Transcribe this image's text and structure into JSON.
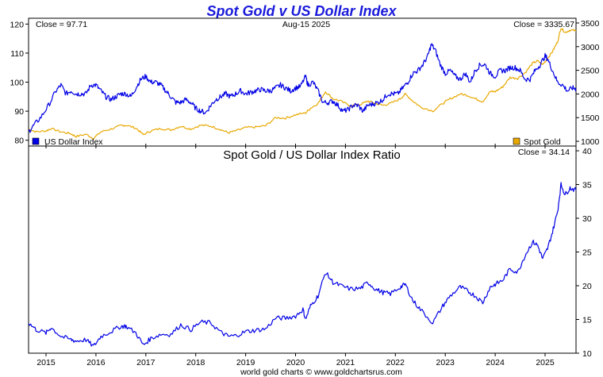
{
  "chart_data": [
    {
      "type": "line",
      "title": "Spot Gold v US Dollar Index",
      "date_label": "Aug-15  2025",
      "left_close_label": "Close = 97.71",
      "right_close_label": "Close = 3335.67",
      "x_years": [
        "2015",
        "2016",
        "2017",
        "2018",
        "2019",
        "2020",
        "2021",
        "2022",
        "2023",
        "2024",
        "2025"
      ],
      "x_range": [
        2014.65,
        2025.62
      ],
      "left_axis": {
        "ticks": [
          "80",
          "90",
          "100",
          "110",
          "120"
        ],
        "range": [
          78,
          122
        ]
      },
      "right_axis": {
        "ticks": [
          "1000",
          "1500",
          "2000",
          "2500",
          "3000",
          "3500"
        ],
        "range": [
          900,
          3600
        ]
      },
      "legend_left": "US Dollar Index",
      "legend_right": "Spot Gold",
      "series": [
        {
          "name": "US Dollar Index",
          "color": "#0000e6",
          "axis": "left",
          "points": [
            [
              2014.65,
              83
            ],
            [
              2014.75,
              85
            ],
            [
              2014.9,
              88
            ],
            [
              2015.05,
              92
            ],
            [
              2015.2,
              97
            ],
            [
              2015.3,
              99
            ],
            [
              2015.4,
              96
            ],
            [
              2015.5,
              97
            ],
            [
              2015.6,
              96
            ],
            [
              2015.7,
              96
            ],
            [
              2015.8,
              96
            ],
            [
              2015.9,
              99
            ],
            [
              2016.0,
              99
            ],
            [
              2016.1,
              97
            ],
            [
              2016.2,
              95
            ],
            [
              2016.3,
              94
            ],
            [
              2016.4,
              95
            ],
            [
              2016.5,
              96
            ],
            [
              2016.6,
              96
            ],
            [
              2016.7,
              95
            ],
            [
              2016.8,
              98
            ],
            [
              2016.9,
              101
            ],
            [
              2017.0,
              102
            ],
            [
              2017.1,
              100
            ],
            [
              2017.2,
              100
            ],
            [
              2017.3,
              99
            ],
            [
              2017.4,
              97
            ],
            [
              2017.5,
              95
            ],
            [
              2017.6,
              93
            ],
            [
              2017.7,
              93
            ],
            [
              2017.8,
              94
            ],
            [
              2017.9,
              93
            ],
            [
              2018.0,
              91
            ],
            [
              2018.1,
              90
            ],
            [
              2018.2,
              89.5
            ],
            [
              2018.3,
              92
            ],
            [
              2018.4,
              94
            ],
            [
              2018.5,
              95
            ],
            [
              2018.6,
              96
            ],
            [
              2018.7,
              95
            ],
            [
              2018.8,
              96
            ],
            [
              2018.9,
              97
            ],
            [
              2019.0,
              96
            ],
            [
              2019.1,
              96.5
            ],
            [
              2019.2,
              97
            ],
            [
              2019.3,
              97.5
            ],
            [
              2019.4,
              97
            ],
            [
              2019.5,
              97
            ],
            [
              2019.6,
              98
            ],
            [
              2019.7,
              99
            ],
            [
              2019.8,
              98
            ],
            [
              2019.9,
              97
            ],
            [
              2020.0,
              98
            ],
            [
              2020.1,
              98.5
            ],
            [
              2020.2,
              102
            ],
            [
              2020.25,
              99
            ],
            [
              2020.35,
              100
            ],
            [
              2020.45,
              97
            ],
            [
              2020.55,
              93
            ],
            [
              2020.65,
              93
            ],
            [
              2020.75,
              93.5
            ],
            [
              2020.85,
              92
            ],
            [
              2020.95,
              90
            ],
            [
              2021.05,
              90.5
            ],
            [
              2021.15,
              92
            ],
            [
              2021.25,
              92
            ],
            [
              2021.35,
              90
            ],
            [
              2021.45,
              92
            ],
            [
              2021.55,
              92.5
            ],
            [
              2021.65,
              93
            ],
            [
              2021.75,
              94
            ],
            [
              2021.85,
              96
            ],
            [
              2021.95,
              96
            ],
            [
              2022.05,
              96
            ],
            [
              2022.15,
              98
            ],
            [
              2022.25,
              100
            ],
            [
              2022.35,
              103
            ],
            [
              2022.45,
              104
            ],
            [
              2022.55,
              106
            ],
            [
              2022.65,
              109
            ],
            [
              2022.72,
              113
            ],
            [
              2022.8,
              111
            ],
            [
              2022.9,
              106
            ],
            [
              2023.0,
              103
            ],
            [
              2023.1,
              104
            ],
            [
              2023.2,
              102
            ],
            [
              2023.3,
              101
            ],
            [
              2023.4,
              103
            ],
            [
              2023.5,
              100
            ],
            [
              2023.6,
              104
            ],
            [
              2023.7,
              106
            ],
            [
              2023.8,
              106
            ],
            [
              2023.9,
              103
            ],
            [
              2024.0,
              102
            ],
            [
              2024.1,
              104
            ],
            [
              2024.2,
              104
            ],
            [
              2024.3,
              105
            ],
            [
              2024.4,
              105
            ],
            [
              2024.5,
              104
            ],
            [
              2024.6,
              101
            ],
            [
              2024.7,
              101
            ],
            [
              2024.8,
              104
            ],
            [
              2024.9,
              106
            ],
            [
              2025.0,
              109
            ],
            [
              2025.05,
              108
            ],
            [
              2025.15,
              104
            ],
            [
              2025.25,
              100
            ],
            [
              2025.35,
              99
            ],
            [
              2025.45,
              97
            ],
            [
              2025.55,
              98
            ],
            [
              2025.62,
              97.71
            ]
          ]
        },
        {
          "name": "Spot Gold",
          "color": "#e8a800",
          "axis": "right",
          "points": [
            [
              2014.65,
              1260
            ],
            [
              2014.8,
              1200
            ],
            [
              2015.0,
              1220
            ],
            [
              2015.1,
              1270
            ],
            [
              2015.3,
              1200
            ],
            [
              2015.5,
              1160
            ],
            [
              2015.6,
              1100
            ],
            [
              2015.8,
              1150
            ],
            [
              2015.95,
              1060
            ],
            [
              2016.1,
              1200
            ],
            [
              2016.3,
              1260
            ],
            [
              2016.5,
              1330
            ],
            [
              2016.6,
              1340
            ],
            [
              2016.8,
              1280
            ],
            [
              2016.95,
              1140
            ],
            [
              2017.1,
              1220
            ],
            [
              2017.3,
              1270
            ],
            [
              2017.5,
              1240
            ],
            [
              2017.7,
              1320
            ],
            [
              2017.9,
              1260
            ],
            [
              2018.1,
              1340
            ],
            [
              2018.3,
              1320
            ],
            [
              2018.5,
              1250
            ],
            [
              2018.65,
              1180
            ],
            [
              2018.8,
              1220
            ],
            [
              2019.0,
              1290
            ],
            [
              2019.2,
              1300
            ],
            [
              2019.4,
              1330
            ],
            [
              2019.6,
              1500
            ],
            [
              2019.8,
              1490
            ],
            [
              2020.0,
              1560
            ],
            [
              2020.2,
              1600
            ],
            [
              2020.3,
              1700
            ],
            [
              2020.45,
              1800
            ],
            [
              2020.6,
              2050
            ],
            [
              2020.75,
              1900
            ],
            [
              2020.9,
              1850
            ],
            [
              2021.1,
              1750
            ],
            [
              2021.3,
              1780
            ],
            [
              2021.45,
              1850
            ],
            [
              2021.6,
              1800
            ],
            [
              2021.75,
              1760
            ],
            [
              2021.9,
              1800
            ],
            [
              2022.1,
              1900
            ],
            [
              2022.2,
              2000
            ],
            [
              2022.35,
              1850
            ],
            [
              2022.5,
              1730
            ],
            [
              2022.75,
              1640
            ],
            [
              2022.95,
              1800
            ],
            [
              2023.1,
              1900
            ],
            [
              2023.3,
              2000
            ],
            [
              2023.45,
              1970
            ],
            [
              2023.6,
              1900
            ],
            [
              2023.75,
              1840
            ],
            [
              2023.9,
              2050
            ],
            [
              2024.0,
              2050
            ],
            [
              2024.15,
              2150
            ],
            [
              2024.3,
              2350
            ],
            [
              2024.45,
              2330
            ],
            [
              2024.6,
              2450
            ],
            [
              2024.75,
              2650
            ],
            [
              2024.85,
              2700
            ],
            [
              2024.95,
              2620
            ],
            [
              2025.05,
              2750
            ],
            [
              2025.15,
              2900
            ],
            [
              2025.25,
              3100
            ],
            [
              2025.32,
              3400
            ],
            [
              2025.4,
              3300
            ],
            [
              2025.5,
              3350
            ],
            [
              2025.62,
              3335.67
            ]
          ]
        }
      ]
    },
    {
      "type": "line",
      "title": "Spot Gold  /  US Dollar Index Ratio",
      "close_label": "Close = 34.14",
      "x_range": [
        2014.65,
        2025.62
      ],
      "right_axis": {
        "ticks": [
          "10",
          "15",
          "20",
          "25",
          "30",
          "35",
          "40"
        ],
        "range": [
          10,
          40
        ]
      },
      "series": [
        {
          "name": "Spot Gold / US Dollar Index Ratio",
          "color": "#0000e6",
          "points": [
            [
              2014.65,
              14.5
            ],
            [
              2014.8,
              13.5
            ],
            [
              2015.0,
              13.0
            ],
            [
              2015.1,
              13.8
            ],
            [
              2015.3,
              12.5
            ],
            [
              2015.5,
              12.0
            ],
            [
              2015.6,
              11.8
            ],
            [
              2015.8,
              12.0
            ],
            [
              2015.95,
              11.0
            ],
            [
              2016.1,
              12.5
            ],
            [
              2016.3,
              13.2
            ],
            [
              2016.5,
              14.0
            ],
            [
              2016.6,
              14.0
            ],
            [
              2016.8,
              13.0
            ],
            [
              2016.95,
              11.2
            ],
            [
              2017.1,
              12.2
            ],
            [
              2017.3,
              12.8
            ],
            [
              2017.5,
              12.8
            ],
            [
              2017.7,
              14.2
            ],
            [
              2017.9,
              13.5
            ],
            [
              2018.1,
              14.6
            ],
            [
              2018.3,
              14.5
            ],
            [
              2018.5,
              13.1
            ],
            [
              2018.65,
              12.5
            ],
            [
              2018.8,
              12.6
            ],
            [
              2019.0,
              13.2
            ],
            [
              2019.2,
              13.4
            ],
            [
              2019.4,
              13.6
            ],
            [
              2019.6,
              15.2
            ],
            [
              2019.8,
              15.2
            ],
            [
              2020.0,
              15.5
            ],
            [
              2020.15,
              16.5
            ],
            [
              2020.2,
              15.0
            ],
            [
              2020.3,
              17.0
            ],
            [
              2020.45,
              18.5
            ],
            [
              2020.6,
              22.0
            ],
            [
              2020.75,
              20.5
            ],
            [
              2020.9,
              20.0
            ],
            [
              2021.1,
              19.5
            ],
            [
              2021.3,
              19.6
            ],
            [
              2021.45,
              20.5
            ],
            [
              2021.6,
              19.5
            ],
            [
              2021.75,
              19.0
            ],
            [
              2021.9,
              18.8
            ],
            [
              2022.1,
              19.8
            ],
            [
              2022.2,
              20.2
            ],
            [
              2022.35,
              17.8
            ],
            [
              2022.5,
              16.5
            ],
            [
              2022.75,
              14.5
            ],
            [
              2022.95,
              17.0
            ],
            [
              2023.1,
              18.5
            ],
            [
              2023.3,
              19.8
            ],
            [
              2023.45,
              19.2
            ],
            [
              2023.6,
              18.5
            ],
            [
              2023.75,
              17.5
            ],
            [
              2023.9,
              19.8
            ],
            [
              2024.0,
              20.2
            ],
            [
              2024.15,
              20.8
            ],
            [
              2024.3,
              22.5
            ],
            [
              2024.45,
              22.0
            ],
            [
              2024.6,
              24.5
            ],
            [
              2024.75,
              26.5
            ],
            [
              2024.85,
              26.0
            ],
            [
              2024.95,
              24.0
            ],
            [
              2025.05,
              25.5
            ],
            [
              2025.15,
              28.0
            ],
            [
              2025.25,
              31.0
            ],
            [
              2025.32,
              35.0
            ],
            [
              2025.4,
              33.5
            ],
            [
              2025.5,
              34.5
            ],
            [
              2025.62,
              34.14
            ]
          ]
        }
      ]
    }
  ],
  "footer": "world gold charts © www.goldchartsrus.com"
}
